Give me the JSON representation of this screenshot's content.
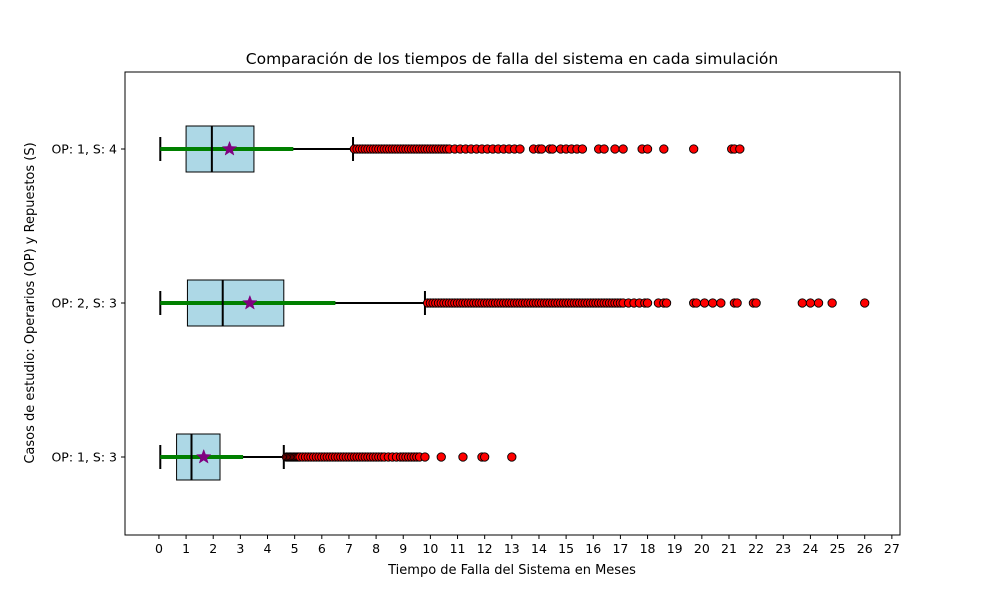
{
  "chart_data": {
    "type": "boxplot",
    "orientation": "horizontal",
    "title": "Comparación de los tiempos de falla del sistema en cada simulación",
    "xlabel": "Tiempo de Falla del Sistema en Meses",
    "ylabel": "Casos de estudio: Operarios (OP) y Repuestos (S)",
    "xlim": [
      -1.25,
      27.3
    ],
    "xticks": [
      0,
      1,
      2,
      3,
      4,
      5,
      6,
      7,
      8,
      9,
      10,
      11,
      12,
      13,
      14,
      15,
      16,
      17,
      18,
      19,
      20,
      21,
      22,
      23,
      24,
      25,
      26,
      27
    ],
    "grid": false,
    "colors": {
      "box_fill": "#add8e6",
      "box_edge": "#000000",
      "whisker": "#000000",
      "std_line": "#008000",
      "mean_marker": "#800080",
      "outlier_fill": "#ff0000",
      "outlier_edge": "#000000"
    },
    "categories": [
      "OP: 1, S: 3",
      "OP: 2, S: 3",
      "OP: 1, S: 4"
    ],
    "series": [
      {
        "label": "OP: 1, S: 3",
        "whisker_low": 0.05,
        "q1": 0.65,
        "median": 1.2,
        "q3": 2.25,
        "whisker_high": 4.6,
        "mean": 1.65,
        "std_line": [
          0.05,
          3.1
        ],
        "outliers": [
          4.7,
          4.75,
          4.8,
          4.85,
          4.9,
          4.95,
          5.0,
          5.05,
          5.1,
          5.15,
          5.2,
          5.3,
          5.4,
          5.5,
          5.6,
          5.7,
          5.8,
          5.9,
          6.0,
          6.1,
          6.2,
          6.3,
          6.4,
          6.5,
          6.6,
          6.7,
          6.8,
          6.9,
          7.0,
          7.1,
          7.2,
          7.3,
          7.4,
          7.5,
          7.6,
          7.7,
          7.8,
          7.9,
          8.0,
          8.1,
          8.2,
          8.3,
          8.45,
          8.6,
          8.75,
          8.9,
          9.0,
          9.1,
          9.2,
          9.3,
          9.4,
          9.5,
          9.6,
          9.8,
          10.4,
          11.2,
          11.9,
          12.0,
          13.0
        ]
      },
      {
        "label": "OP: 2, S: 3",
        "whisker_low": 0.05,
        "q1": 1.05,
        "median": 2.35,
        "q3": 4.6,
        "whisker_high": 9.8,
        "mean": 3.35,
        "std_line": [
          0.05,
          6.5
        ],
        "outliers": [
          9.9,
          10.0,
          10.1,
          10.2,
          10.3,
          10.4,
          10.5,
          10.6,
          10.7,
          10.8,
          10.9,
          11.0,
          11.1,
          11.2,
          11.3,
          11.4,
          11.5,
          11.6,
          11.7,
          11.8,
          11.9,
          12.0,
          12.1,
          12.2,
          12.3,
          12.4,
          12.5,
          12.6,
          12.7,
          12.8,
          12.9,
          13.0,
          13.1,
          13.2,
          13.3,
          13.4,
          13.5,
          13.6,
          13.7,
          13.8,
          13.9,
          14.0,
          14.1,
          14.2,
          14.3,
          14.4,
          14.5,
          14.6,
          14.7,
          14.8,
          14.9,
          15.0,
          15.1,
          15.2,
          15.3,
          15.4,
          15.5,
          15.6,
          15.7,
          15.8,
          15.9,
          16.0,
          16.1,
          16.2,
          16.3,
          16.4,
          16.5,
          16.6,
          16.7,
          16.8,
          16.9,
          17.0,
          17.1,
          17.3,
          17.5,
          17.7,
          17.9,
          18.0,
          18.4,
          18.6,
          18.7,
          19.7,
          19.8,
          20.1,
          20.4,
          20.7,
          21.2,
          21.3,
          21.9,
          22.0,
          23.7,
          24.0,
          24.3,
          24.8,
          26.0
        ]
      },
      {
        "label": "OP: 1, S: 4",
        "whisker_low": 0.05,
        "q1": 1.0,
        "median": 1.95,
        "q3": 3.5,
        "whisker_high": 7.15,
        "mean": 2.6,
        "std_line": [
          0.05,
          4.95
        ],
        "outliers": [
          7.2,
          7.3,
          7.4,
          7.5,
          7.6,
          7.7,
          7.8,
          7.9,
          8.0,
          8.1,
          8.2,
          8.3,
          8.4,
          8.5,
          8.6,
          8.7,
          8.8,
          8.9,
          9.0,
          9.1,
          9.2,
          9.3,
          9.4,
          9.5,
          9.6,
          9.7,
          9.8,
          9.9,
          10.0,
          10.1,
          10.2,
          10.3,
          10.4,
          10.5,
          10.6,
          10.7,
          10.9,
          11.1,
          11.3,
          11.5,
          11.7,
          11.9,
          12.1,
          12.3,
          12.5,
          12.7,
          12.9,
          13.1,
          13.3,
          13.8,
          14.0,
          14.1,
          14.4,
          14.5,
          14.8,
          15.0,
          15.2,
          15.4,
          15.6,
          16.2,
          16.4,
          16.8,
          17.1,
          17.8,
          18.0,
          18.6,
          19.7,
          21.1,
          21.2,
          21.4
        ]
      }
    ]
  }
}
